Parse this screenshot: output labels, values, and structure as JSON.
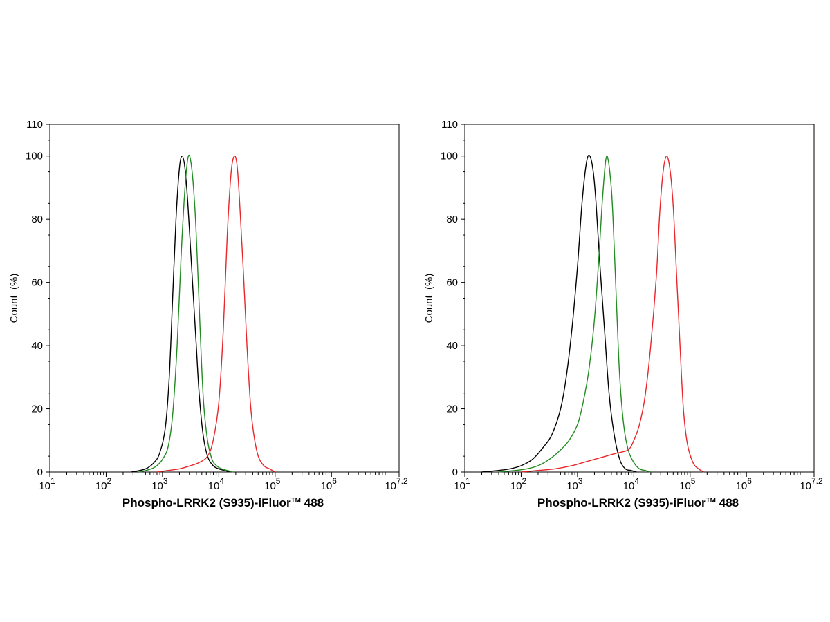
{
  "chart_data": [
    {
      "type": "line",
      "panel": "left",
      "xlabel": "Phospho-LRRK2 (S935)-iFluor™ 488",
      "xlabel_parts": {
        "main": "Phospho-LRRK2 (S935)-iFluor",
        "tm": "TM",
        "tail": " 488"
      },
      "ylabel": "Count  (%)",
      "xscale": "log10",
      "xlim_exp": [
        1,
        7.2
      ],
      "ylim": [
        0,
        110
      ],
      "yticks": [
        0,
        20,
        40,
        60,
        80,
        100,
        110
      ],
      "xticks": [
        {
          "base": "10",
          "exp": "1",
          "v": 1
        },
        {
          "base": "10",
          "exp": "2",
          "v": 2
        },
        {
          "base": "10",
          "exp": "3",
          "v": 3
        },
        {
          "base": "10",
          "exp": "4",
          "v": 4
        },
        {
          "base": "10",
          "exp": "5",
          "v": 5
        },
        {
          "base": "10",
          "exp": "6",
          "v": 6
        },
        {
          "base": "10",
          "exp": "7.2",
          "v": 7.2
        }
      ],
      "series": [
        {
          "name": "black",
          "color": "#000000",
          "x": [
            2.45,
            2.7,
            2.85,
            2.95,
            3.05,
            3.12,
            3.18,
            3.24,
            3.3,
            3.35,
            3.4,
            3.45,
            3.5,
            3.55,
            3.6,
            3.65,
            3.72,
            3.8,
            3.9,
            4.0,
            4.1,
            4.2
          ],
          "y": [
            0,
            1,
            3,
            6,
            14,
            30,
            55,
            80,
            96,
            100,
            96,
            85,
            70,
            55,
            40,
            25,
            12,
            5,
            2,
            1,
            0.5,
            0
          ]
        },
        {
          "name": "green",
          "color": "#228B22",
          "x": [
            2.6,
            2.8,
            2.9,
            3.0,
            3.1,
            3.18,
            3.26,
            3.33,
            3.4,
            3.46,
            3.52,
            3.58,
            3.63,
            3.68,
            3.73,
            3.8,
            3.88,
            3.96,
            4.05,
            4.15,
            4.25
          ],
          "y": [
            0,
            1,
            2,
            4,
            8,
            18,
            40,
            68,
            90,
            100,
            96,
            82,
            62,
            40,
            22,
            10,
            4,
            2,
            1,
            0.5,
            0
          ]
        },
        {
          "name": "red",
          "color": "#E8262B",
          "x": [
            2.9,
            3.1,
            3.3,
            3.5,
            3.65,
            3.8,
            3.9,
            4.0,
            4.08,
            4.15,
            4.22,
            4.28,
            4.33,
            4.38,
            4.44,
            4.5,
            4.56,
            4.62,
            4.7,
            4.8,
            4.9,
            5.0
          ],
          "y": [
            0,
            0.5,
            1,
            2,
            3,
            5,
            10,
            22,
            45,
            75,
            95,
            100,
            96,
            82,
            62,
            40,
            22,
            12,
            5,
            2,
            1,
            0
          ]
        }
      ]
    },
    {
      "type": "line",
      "panel": "right",
      "xlabel": "Phospho-LRRK2 (S935)-iFluor™ 488",
      "xlabel_parts": {
        "main": "Phospho-LRRK2 (S935)-iFluor",
        "tm": "TM",
        "tail": " 488"
      },
      "ylabel": "Count  (%)",
      "xscale": "log10",
      "xlim_exp": [
        1,
        7.2
      ],
      "ylim": [
        0,
        110
      ],
      "yticks": [
        0,
        20,
        40,
        60,
        80,
        100,
        110
      ],
      "xticks": [
        {
          "base": "10",
          "exp": "1",
          "v": 1
        },
        {
          "base": "10",
          "exp": "2",
          "v": 2
        },
        {
          "base": "10",
          "exp": "3",
          "v": 3
        },
        {
          "base": "10",
          "exp": "4",
          "v": 4
        },
        {
          "base": "10",
          "exp": "5",
          "v": 5
        },
        {
          "base": "10",
          "exp": "6",
          "v": 6
        },
        {
          "base": "10",
          "exp": "7.2",
          "v": 7.2
        }
      ],
      "series": [
        {
          "name": "black",
          "color": "#000000",
          "x": [
            1.3,
            1.6,
            1.8,
            2.0,
            2.2,
            2.4,
            2.55,
            2.7,
            2.8,
            2.9,
            3.0,
            3.08,
            3.16,
            3.22,
            3.28,
            3.33,
            3.4,
            3.48,
            3.56,
            3.65,
            3.75,
            3.85,
            3.95,
            4.05
          ],
          "y": [
            0,
            0.5,
            1,
            2,
            4,
            8,
            12,
            20,
            30,
            45,
            65,
            85,
            98,
            100,
            95,
            85,
            65,
            45,
            25,
            12,
            4,
            1,
            0.5,
            0
          ]
        },
        {
          "name": "green",
          "color": "#228B22",
          "x": [
            1.6,
            1.9,
            2.1,
            2.3,
            2.5,
            2.7,
            2.85,
            3.0,
            3.1,
            3.2,
            3.3,
            3.38,
            3.45,
            3.52,
            3.6,
            3.65,
            3.7,
            3.75,
            3.82,
            3.9,
            4.0,
            4.1,
            4.2,
            4.3
          ],
          "y": [
            0,
            0.5,
            1,
            2,
            4,
            7,
            10,
            15,
            22,
            32,
            48,
            68,
            88,
            100,
            90,
            72,
            50,
            30,
            15,
            7,
            3,
            1,
            0.5,
            0
          ]
        },
        {
          "name": "red",
          "color": "#E8262B",
          "x": [
            2.0,
            2.3,
            2.6,
            2.9,
            3.1,
            3.3,
            3.5,
            3.7,
            3.9,
            4.0,
            4.1,
            4.2,
            4.3,
            4.4,
            4.46,
            4.52,
            4.58,
            4.64,
            4.7,
            4.76,
            4.82,
            4.88,
            4.95,
            5.05,
            5.15,
            5.25
          ],
          "y": [
            0,
            0.5,
            1,
            2,
            3,
            4,
            5,
            6,
            7,
            10,
            15,
            24,
            40,
            62,
            82,
            95,
            100,
            96,
            84,
            62,
            40,
            20,
            9,
            3,
            1,
            0
          ]
        }
      ]
    }
  ]
}
